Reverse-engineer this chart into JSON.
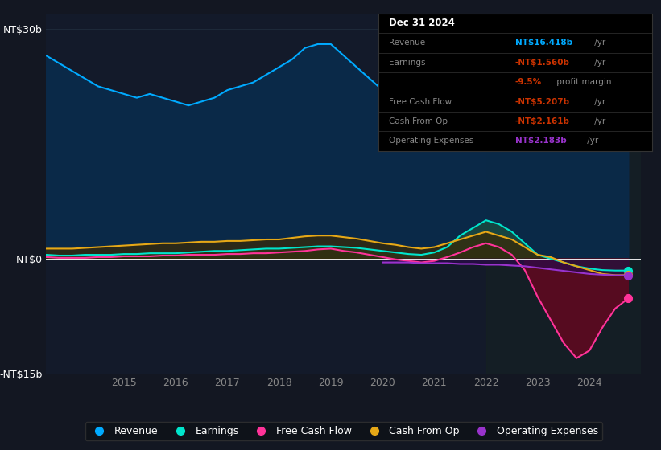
{
  "bg_color": "#131722",
  "plot_bg": "#131a2a",
  "grid_color": "#1e2a3a",
  "zero_line_color": "#ffffff",
  "ylabel_top": "NT$30b",
  "ylabel_zero": "NT$0",
  "ylabel_bottom": "-NT$15b",
  "ylim": [
    -15,
    32
  ],
  "years": [
    2013.0,
    2013.25,
    2013.5,
    2013.75,
    2014.0,
    2014.25,
    2014.5,
    2014.75,
    2015.0,
    2015.25,
    2015.5,
    2015.75,
    2016.0,
    2016.25,
    2016.5,
    2016.75,
    2017.0,
    2017.25,
    2017.5,
    2017.75,
    2018.0,
    2018.25,
    2018.5,
    2018.75,
    2019.0,
    2019.25,
    2019.5,
    2019.75,
    2020.0,
    2020.25,
    2020.5,
    2020.75,
    2021.0,
    2021.25,
    2021.5,
    2021.75,
    2022.0,
    2022.25,
    2022.5,
    2022.75,
    2023.0,
    2023.25,
    2023.5,
    2023.75,
    2024.0,
    2024.25,
    2024.5,
    2024.75
  ],
  "revenue": [
    27.5,
    27.0,
    26.5,
    25.5,
    24.5,
    23.5,
    22.5,
    22.0,
    21.5,
    21.0,
    21.5,
    21.0,
    20.5,
    20.0,
    20.5,
    21.0,
    22.0,
    22.5,
    23.0,
    24.0,
    25.0,
    26.0,
    27.5,
    28.0,
    28.0,
    26.5,
    25.0,
    23.5,
    22.0,
    20.5,
    18.0,
    17.0,
    17.5,
    19.0,
    21.5,
    23.5,
    25.5,
    26.0,
    25.5,
    23.5,
    21.5,
    20.0,
    18.5,
    17.5,
    16.5,
    16.4,
    16.5,
    16.418
  ],
  "earnings": [
    0.5,
    0.5,
    0.5,
    0.4,
    0.4,
    0.5,
    0.5,
    0.5,
    0.6,
    0.6,
    0.7,
    0.7,
    0.7,
    0.8,
    0.9,
    1.0,
    1.0,
    1.1,
    1.2,
    1.3,
    1.3,
    1.4,
    1.5,
    1.6,
    1.6,
    1.5,
    1.4,
    1.2,
    1.0,
    0.8,
    0.6,
    0.5,
    0.8,
    1.5,
    3.0,
    4.0,
    5.0,
    4.5,
    3.5,
    2.0,
    0.5,
    0.0,
    -0.5,
    -1.0,
    -1.3,
    -1.5,
    -1.56,
    -1.56
  ],
  "free_cash_flow": [
    0.2,
    0.2,
    0.2,
    0.1,
    0.1,
    0.1,
    0.2,
    0.2,
    0.3,
    0.3,
    0.3,
    0.4,
    0.4,
    0.5,
    0.5,
    0.5,
    0.6,
    0.6,
    0.7,
    0.7,
    0.8,
    0.9,
    1.0,
    1.2,
    1.3,
    1.0,
    0.8,
    0.5,
    0.2,
    -0.1,
    -0.3,
    -0.5,
    -0.3,
    0.2,
    0.8,
    1.5,
    2.0,
    1.5,
    0.5,
    -1.5,
    -5.0,
    -8.0,
    -11.0,
    -13.0,
    -12.0,
    -9.0,
    -6.5,
    -5.207
  ],
  "cash_from_op": [
    1.2,
    1.2,
    1.3,
    1.3,
    1.3,
    1.4,
    1.5,
    1.6,
    1.7,
    1.8,
    1.9,
    2.0,
    2.0,
    2.1,
    2.2,
    2.2,
    2.3,
    2.3,
    2.4,
    2.5,
    2.5,
    2.7,
    2.9,
    3.0,
    3.0,
    2.8,
    2.6,
    2.3,
    2.0,
    1.8,
    1.5,
    1.3,
    1.5,
    2.0,
    2.5,
    3.0,
    3.5,
    3.0,
    2.5,
    1.5,
    0.5,
    0.2,
    -0.5,
    -1.0,
    -1.5,
    -2.0,
    -2.161,
    -2.161
  ],
  "operating_expenses": [
    null,
    null,
    null,
    null,
    null,
    null,
    null,
    null,
    null,
    null,
    null,
    null,
    null,
    null,
    null,
    null,
    null,
    null,
    null,
    null,
    null,
    null,
    null,
    null,
    null,
    null,
    null,
    null,
    -0.5,
    -0.5,
    -0.5,
    -0.6,
    -0.6,
    -0.6,
    -0.7,
    -0.7,
    -0.8,
    -0.8,
    -0.9,
    -1.0,
    -1.2,
    -1.4,
    -1.6,
    -1.8,
    -2.0,
    -2.1,
    -2.183,
    -2.183
  ],
  "revenue_color": "#00aaff",
  "revenue_fill": "#0a2a4a",
  "earnings_color": "#00e5cc",
  "earnings_fill_pos": "#1a4a40",
  "earnings_fill_neg": "#3a1a2a",
  "fcf_color": "#ff3399",
  "fcf_fill_neg": "#5a0a20",
  "fcf_fill_pos": "#1a3a20",
  "cashop_color": "#e6a817",
  "cashop_fill": "#3a2a05",
  "opex_color": "#9933cc",
  "opex_fill": "#2a0a4a",
  "tooltip_bg": "#000000",
  "tooltip_border": "#333333",
  "xlim_start": 2013.5,
  "xlim_end": 2025.0,
  "xticks": [
    2015,
    2016,
    2017,
    2018,
    2019,
    2020,
    2021,
    2022,
    2023,
    2024
  ],
  "shadow_region_start": 2022.0,
  "shadow_region_end": 2025.0,
  "tooltip_rows": [
    {
      "label": "Dec 31 2024",
      "value": "",
      "suffix": "",
      "label_color": "#ffffff",
      "value_color": "#ffffff",
      "is_header": true
    },
    {
      "label": "Revenue",
      "value": "NT$16.418b",
      "suffix": " /yr",
      "label_color": "#888888",
      "value_color": "#00aaff",
      "is_header": false
    },
    {
      "label": "Earnings",
      "value": "-NT$1.560b",
      "suffix": " /yr",
      "label_color": "#888888",
      "value_color": "#cc3300",
      "is_header": false
    },
    {
      "label": "",
      "value": "-9.5%",
      "suffix": " profit margin",
      "label_color": "#888888",
      "value_color": "#cc3300",
      "is_header": false
    },
    {
      "label": "Free Cash Flow",
      "value": "-NT$5.207b",
      "suffix": " /yr",
      "label_color": "#888888",
      "value_color": "#cc3300",
      "is_header": false
    },
    {
      "label": "Cash From Op",
      "value": "-NT$2.161b",
      "suffix": " /yr",
      "label_color": "#888888",
      "value_color": "#cc3300",
      "is_header": false
    },
    {
      "label": "Operating Expenses",
      "value": "NT$2.183b",
      "suffix": " /yr",
      "label_color": "#888888",
      "value_color": "#9933cc",
      "is_header": false
    }
  ],
  "legend_items": [
    {
      "label": "Revenue",
      "color": "#00aaff"
    },
    {
      "label": "Earnings",
      "color": "#00e5cc"
    },
    {
      "label": "Free Cash Flow",
      "color": "#ff3399"
    },
    {
      "label": "Cash From Op",
      "color": "#e6a817"
    },
    {
      "label": "Operating Expenses",
      "color": "#9933cc"
    }
  ]
}
